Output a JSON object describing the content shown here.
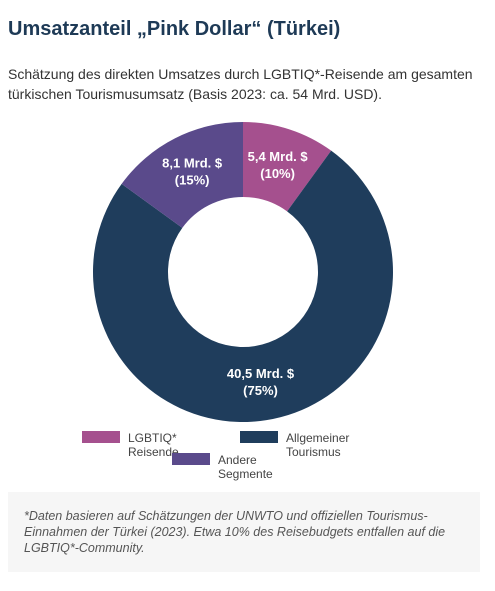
{
  "chart_data": {
    "type": "donut",
    "title": "Umsatzanteil „Pink Dollar“ (Türkei)",
    "subtitle": "Schätzung des direkten Umsatzes durch LGBTIQ*-Reisende am gesamten türkischen Tourismusumsatz (Basis 2023: ca. 54 Mrd. USD).",
    "categories": [
      "LGBTIQ* Reisende",
      "Allgemeiner Tourismus",
      "Andere Segmente"
    ],
    "values": [
      10,
      75,
      15
    ],
    "value_labels": [
      "(10%)",
      "(75%)",
      "(15%)"
    ],
    "amounts": [
      5.4,
      40.5,
      8.1
    ],
    "amount_labels": [
      "5,4 Mrd. $",
      "40,5 Mrd. $",
      "8,1 Mrd. $"
    ],
    "colors": [
      "#a5508e",
      "#1f3d5c",
      "#5a4a8b"
    ],
    "note": "*Daten basieren auf Schätzungen der UNWTO und offiziellen Tourismus-Einnahmen der Türkei (2023). Etwa 10% des Reisebudgets entfallen auf die LGBTIQ*-Community."
  }
}
